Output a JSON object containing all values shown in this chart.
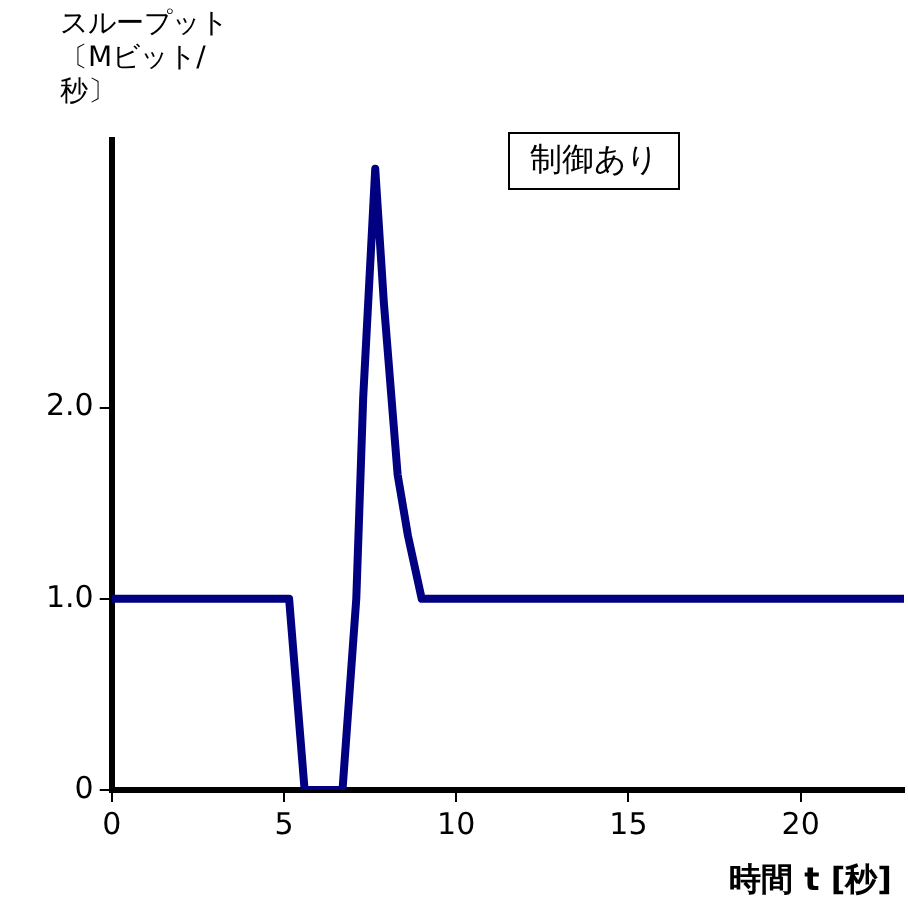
{
  "chart_data": {
    "type": "line",
    "ylabel": "スループット〔Mビット/秒〕",
    "xlabel": "時間 t [秒]",
    "annotations": [
      "制御あり"
    ],
    "x": [
      0,
      5.15,
      5.6,
      6.7,
      7.1,
      7.3,
      7.65,
      7.9,
      8.3,
      8.6,
      9.0,
      23
    ],
    "series": [
      {
        "color": "#000080",
        "values": [
          1,
          1,
          0,
          0,
          1,
          2.05,
          3.25,
          2.55,
          1.65,
          1.33,
          1,
          1
        ]
      }
    ],
    "xlim": [
      0,
      23
    ],
    "xticks": [
      0,
      5,
      10,
      15,
      20
    ],
    "ylim": [
      0,
      3.4
    ],
    "yticks": [
      0,
      {
        "value": 1,
        "label": "1.0"
      },
      {
        "value": 2,
        "label": "2.0"
      }
    ],
    "grid": false,
    "legend": false,
    "marker": "none",
    "line_style": "solid"
  }
}
